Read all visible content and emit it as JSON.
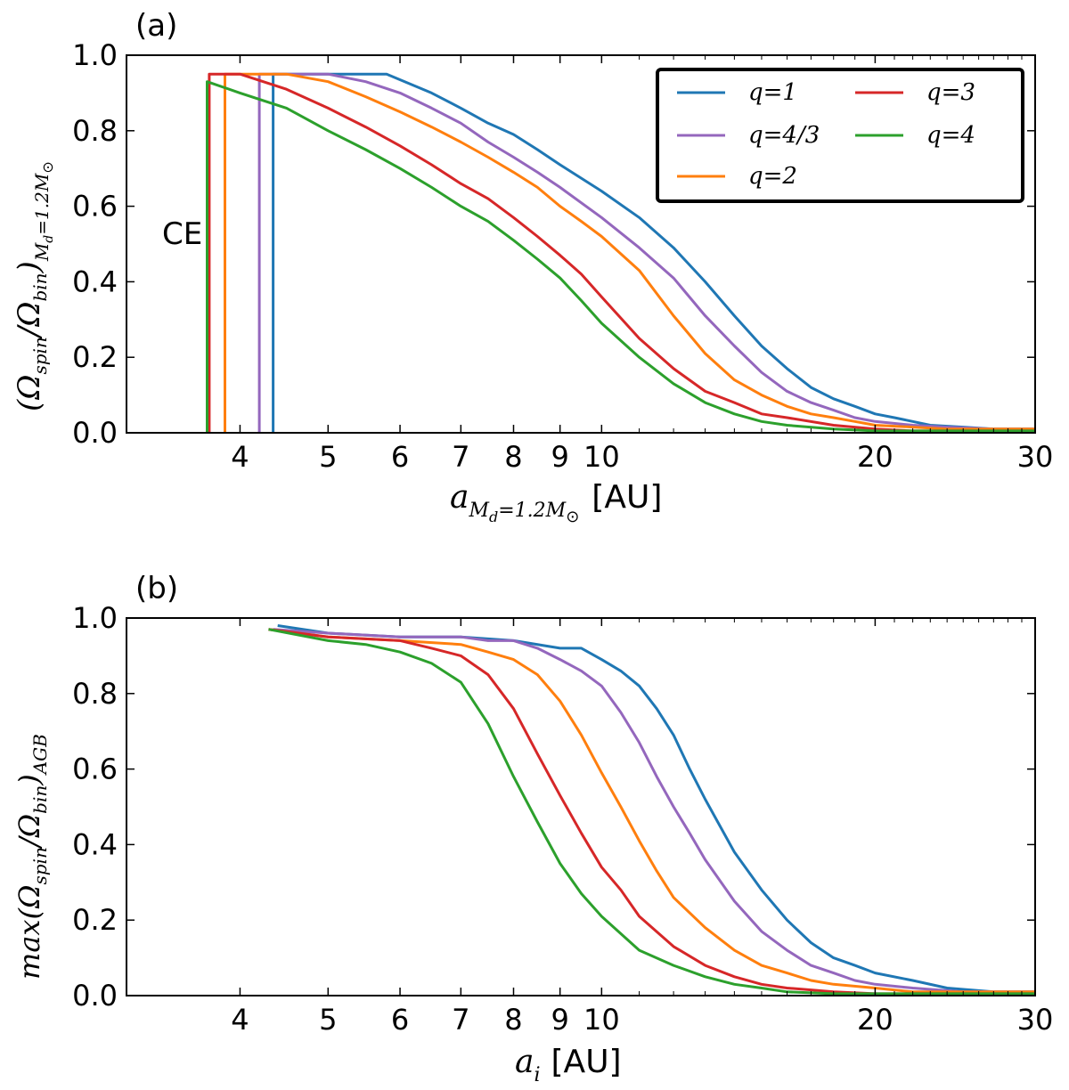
{
  "colors": {
    "blue": "#1f77b4",
    "purple": "#9467bd",
    "orange": "#ff7f0e",
    "red": "#d62728",
    "green": "#2ca02c"
  },
  "chart_data": [
    {
      "type": "line",
      "panel_label": "(a)",
      "annotation": "CE",
      "xscale": "log",
      "xlim": [
        3,
        30
      ],
      "ylim": [
        0,
        1
      ],
      "xticks": [
        4,
        5,
        6,
        7,
        8,
        9,
        10,
        20,
        30
      ],
      "xtick_labels": [
        "4",
        "5",
        "6",
        "7",
        "8",
        "9",
        "10",
        "20",
        "30"
      ],
      "yticks": [
        0,
        0.2,
        0.4,
        0.6,
        0.8,
        1.0
      ],
      "ytick_labels": [
        "0.0",
        "0.2",
        "0.4",
        "0.6",
        "0.8",
        "1.0"
      ],
      "xlabel": {
        "main": "a",
        "sub": "M",
        "subsub": "d",
        "rest": "=1.2M",
        "sun": "⊙",
        "unit": "[AU]"
      },
      "ylabel": {
        "prefix": "(Ω",
        "s1": "spin",
        "mid": "/Ω",
        "s2": "bin",
        "close": ")",
        "s3": "M",
        "s3b": "d",
        "s3c": "=1.2M",
        "sun": "⊙"
      },
      "legend": {
        "position": "top-right",
        "columns": 2
      },
      "series": [
        {
          "name": "q=1",
          "color": "blue",
          "cutoff": 4.35,
          "x": [
            4.35,
            5.0,
            5.8,
            6.5,
            7.0,
            7.5,
            8.0,
            8.5,
            9.0,
            10.0,
            11.0,
            12.0,
            13.0,
            14.0,
            15.0,
            16.0,
            17.0,
            18.0,
            19.0,
            20.0,
            21.0,
            22.0,
            23.0,
            25.0,
            27.0,
            30.0
          ],
          "y": [
            0.95,
            0.95,
            0.95,
            0.9,
            0.86,
            0.82,
            0.79,
            0.75,
            0.71,
            0.64,
            0.57,
            0.49,
            0.4,
            0.31,
            0.23,
            0.17,
            0.12,
            0.09,
            0.07,
            0.05,
            0.04,
            0.03,
            0.02,
            0.015,
            0.01,
            0.01
          ]
        },
        {
          "name": "q=4/3",
          "color": "purple",
          "cutoff": 4.2,
          "x": [
            4.2,
            5.0,
            5.5,
            6.0,
            6.5,
            7.0,
            7.5,
            8.0,
            8.5,
            9.0,
            10.0,
            11.0,
            12.0,
            13.0,
            14.0,
            15.0,
            16.0,
            17.0,
            18.0,
            19.0,
            20.0,
            22.0,
            24.0,
            27.0,
            30.0
          ],
          "y": [
            0.95,
            0.95,
            0.93,
            0.9,
            0.86,
            0.82,
            0.77,
            0.73,
            0.69,
            0.65,
            0.57,
            0.49,
            0.41,
            0.31,
            0.23,
            0.16,
            0.11,
            0.08,
            0.06,
            0.04,
            0.03,
            0.02,
            0.015,
            0.01,
            0.01
          ]
        },
        {
          "name": "q=2",
          "color": "orange",
          "cutoff": 3.85,
          "x": [
            3.85,
            4.5,
            5.0,
            5.5,
            6.0,
            6.5,
            7.0,
            7.5,
            8.0,
            8.5,
            9.0,
            9.5,
            10.0,
            11.0,
            12.0,
            13.0,
            14.0,
            15.0,
            16.0,
            17.0,
            18.0,
            19.0,
            20.0,
            22.0,
            24.0,
            27.0,
            30.0
          ],
          "y": [
            0.95,
            0.95,
            0.93,
            0.89,
            0.85,
            0.81,
            0.77,
            0.73,
            0.69,
            0.65,
            0.6,
            0.56,
            0.52,
            0.43,
            0.31,
            0.21,
            0.14,
            0.1,
            0.07,
            0.05,
            0.04,
            0.03,
            0.02,
            0.015,
            0.01,
            0.01,
            0.01
          ]
        },
        {
          "name": "q=3",
          "color": "red",
          "cutoff": 3.7,
          "x": [
            3.7,
            4.0,
            4.5,
            5.0,
            5.5,
            6.0,
            6.5,
            7.0,
            7.5,
            8.0,
            8.5,
            9.0,
            9.5,
            10.0,
            11.0,
            12.0,
            13.0,
            14.0,
            15.0,
            16.0,
            18.0,
            20.0,
            22.0,
            25.0,
            30.0
          ],
          "y": [
            0.95,
            0.95,
            0.91,
            0.86,
            0.81,
            0.76,
            0.71,
            0.66,
            0.62,
            0.57,
            0.52,
            0.47,
            0.42,
            0.36,
            0.25,
            0.17,
            0.11,
            0.08,
            0.05,
            0.04,
            0.02,
            0.01,
            0.005,
            0.005,
            0.005
          ]
        },
        {
          "name": "q=4",
          "color": "green",
          "cutoff": 3.68,
          "x": [
            3.68,
            4.0,
            4.5,
            5.0,
            5.5,
            6.0,
            6.5,
            7.0,
            7.5,
            8.0,
            8.5,
            9.0,
            9.5,
            10.0,
            11.0,
            12.0,
            13.0,
            14.0,
            15.0,
            16.0,
            18.0,
            20.0,
            22.0,
            25.0,
            30.0
          ],
          "y": [
            0.93,
            0.9,
            0.86,
            0.8,
            0.75,
            0.7,
            0.65,
            0.6,
            0.56,
            0.51,
            0.46,
            0.41,
            0.35,
            0.29,
            0.2,
            0.13,
            0.08,
            0.05,
            0.03,
            0.02,
            0.01,
            0.005,
            0.005,
            0.005,
            0.005
          ]
        }
      ]
    },
    {
      "type": "line",
      "panel_label": "(b)",
      "xscale": "log",
      "xlim": [
        3,
        30
      ],
      "ylim": [
        0,
        1
      ],
      "xticks": [
        4,
        5,
        6,
        7,
        8,
        9,
        10,
        20,
        30
      ],
      "xtick_labels": [
        "4",
        "5",
        "6",
        "7",
        "8",
        "9",
        "10",
        "20",
        "30"
      ],
      "yticks": [
        0,
        0.2,
        0.4,
        0.6,
        0.8,
        1.0
      ],
      "ytick_labels": [
        "0.0",
        "0.2",
        "0.4",
        "0.6",
        "0.8",
        "1.0"
      ],
      "xlabel": {
        "main": "a",
        "sub": "i",
        "unit": "[AU]"
      },
      "ylabel": {
        "prefix": "max(Ω",
        "s1": "spin",
        "mid": "/Ω",
        "s2": "bin",
        "close": ")",
        "s3": "AGB"
      },
      "series": [
        {
          "name": "q=1",
          "color": "blue",
          "x": [
            4.4,
            5.0,
            6.0,
            7.0,
            8.0,
            9.0,
            9.5,
            10.0,
            10.5,
            11.0,
            11.5,
            12.0,
            12.5,
            13.0,
            14.0,
            15.0,
            16.0,
            17.0,
            18.0,
            19.0,
            20.0,
            22.0,
            24.0,
            27.0,
            30.0
          ],
          "y": [
            0.98,
            0.96,
            0.95,
            0.95,
            0.94,
            0.92,
            0.92,
            0.89,
            0.86,
            0.82,
            0.76,
            0.69,
            0.6,
            0.52,
            0.38,
            0.28,
            0.2,
            0.14,
            0.1,
            0.08,
            0.06,
            0.04,
            0.02,
            0.01,
            0.01
          ]
        },
        {
          "name": "q=4/3",
          "color": "purple",
          "x": [
            4.35,
            5.0,
            6.0,
            7.0,
            7.5,
            8.0,
            8.5,
            9.0,
            9.5,
            10.0,
            10.5,
            11.0,
            11.5,
            12.0,
            12.5,
            13.0,
            14.0,
            15.0,
            16.0,
            17.0,
            18.0,
            19.0,
            20.0,
            22.0,
            25.0,
            30.0
          ],
          "y": [
            0.97,
            0.96,
            0.95,
            0.95,
            0.94,
            0.94,
            0.92,
            0.89,
            0.86,
            0.82,
            0.75,
            0.67,
            0.58,
            0.5,
            0.43,
            0.36,
            0.25,
            0.17,
            0.12,
            0.08,
            0.06,
            0.04,
            0.03,
            0.02,
            0.01,
            0.01
          ]
        },
        {
          "name": "q=2",
          "color": "orange",
          "x": [
            4.3,
            5.0,
            6.0,
            7.0,
            7.5,
            8.0,
            8.5,
            9.0,
            9.5,
            10.0,
            10.5,
            11.0,
            11.5,
            12.0,
            13.0,
            14.0,
            15.0,
            16.0,
            17.0,
            18.0,
            20.0,
            22.0,
            25.0,
            30.0
          ],
          "y": [
            0.97,
            0.95,
            0.94,
            0.93,
            0.91,
            0.89,
            0.85,
            0.78,
            0.69,
            0.59,
            0.5,
            0.41,
            0.33,
            0.26,
            0.18,
            0.12,
            0.08,
            0.06,
            0.04,
            0.03,
            0.02,
            0.01,
            0.01,
            0.01
          ]
        },
        {
          "name": "q=3",
          "color": "red",
          "x": [
            4.3,
            5.0,
            6.0,
            6.5,
            7.0,
            7.5,
            8.0,
            8.5,
            9.0,
            9.5,
            10.0,
            10.5,
            11.0,
            12.0,
            13.0,
            14.0,
            15.0,
            16.0,
            17.0,
            18.0,
            20.0,
            22.0,
            25.0,
            30.0
          ],
          "y": [
            0.97,
            0.95,
            0.94,
            0.92,
            0.9,
            0.85,
            0.76,
            0.64,
            0.53,
            0.43,
            0.34,
            0.28,
            0.21,
            0.13,
            0.08,
            0.05,
            0.03,
            0.02,
            0.015,
            0.01,
            0.005,
            0.005,
            0.005,
            0.005
          ]
        },
        {
          "name": "q=4",
          "color": "green",
          "x": [
            4.3,
            5.0,
            5.5,
            6.0,
            6.5,
            7.0,
            7.5,
            8.0,
            8.5,
            9.0,
            9.5,
            10.0,
            11.0,
            12.0,
            13.0,
            14.0,
            15.0,
            16.0,
            18.0,
            20.0,
            22.0,
            25.0,
            30.0
          ],
          "y": [
            0.97,
            0.94,
            0.93,
            0.91,
            0.88,
            0.83,
            0.72,
            0.58,
            0.46,
            0.35,
            0.27,
            0.21,
            0.12,
            0.08,
            0.05,
            0.03,
            0.02,
            0.01,
            0.005,
            0.005,
            0.005,
            0.005,
            0.005
          ]
        }
      ]
    }
  ]
}
